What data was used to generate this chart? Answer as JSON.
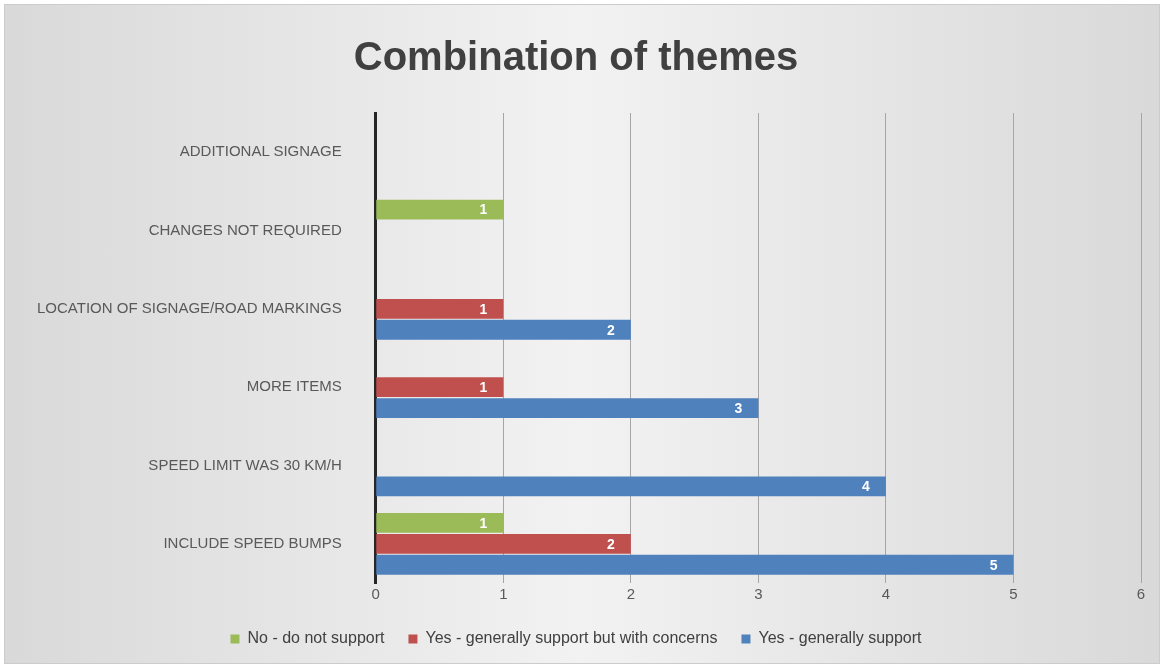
{
  "chart_data": {
    "type": "bar",
    "orientation": "horizontal",
    "title": "Combination of themes",
    "categories": [
      "ADDITIONAL SIGNAGE",
      "CHANGES NOT REQUIRED",
      "LOCATION OF SIGNAGE/ROAD MARKINGS",
      "MORE ITEMS",
      "SPEED LIMIT WAS 30 KM/H",
      "INCLUDE SPEED BUMPS"
    ],
    "series": [
      {
        "name": "No - do not support",
        "color": "#9bbb59",
        "values": [
          null,
          1,
          null,
          null,
          null,
          1
        ]
      },
      {
        "name": "Yes - generally support but with concerns",
        "color": "#c0504d",
        "values": [
          null,
          null,
          1,
          1,
          null,
          2
        ]
      },
      {
        "name": "Yes - generally support",
        "color": "#4f81bd",
        "values": [
          null,
          null,
          2,
          3,
          4,
          5
        ]
      }
    ],
    "xlim": [
      0,
      6
    ],
    "xticks": [
      0,
      1,
      2,
      3,
      4,
      5,
      6
    ],
    "grid": "x",
    "legend": "bottom",
    "data_labels": true
  }
}
